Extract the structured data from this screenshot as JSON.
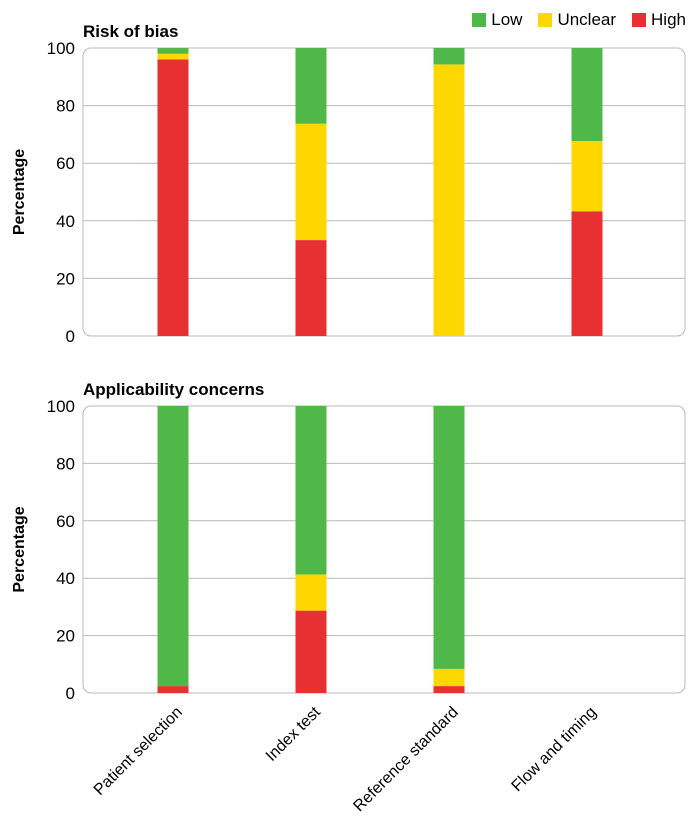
{
  "legend": {
    "placement": "top-right",
    "items": [
      {
        "label": "Low",
        "color": "#4fb848"
      },
      {
        "label": "Unclear",
        "color": "#ffd700"
      },
      {
        "label": "High",
        "color": "#e63031"
      }
    ]
  },
  "chart_data": [
    {
      "type": "bar",
      "stacked": true,
      "title": "Risk of bias",
      "ylabel": "Percentage",
      "xlabel": "",
      "ylim": [
        0,
        100
      ],
      "yticks": [
        0,
        20,
        40,
        60,
        80,
        100
      ],
      "grid": true,
      "categories": [
        "Patient selection",
        "Index test",
        "Reference standard",
        "Flow and timing"
      ],
      "series": [
        {
          "name": "High",
          "color": "#e63031",
          "values": [
            96,
            33.3,
            0,
            43.3
          ]
        },
        {
          "name": "Unclear",
          "color": "#ffd700",
          "values": [
            2,
            40.4,
            94.3,
            24.4
          ]
        },
        {
          "name": "Low",
          "color": "#4fb848",
          "values": [
            2,
            26.3,
            5.7,
            32.3
          ]
        }
      ]
    },
    {
      "type": "bar",
      "stacked": true,
      "title": "Applicability concerns",
      "ylabel": "Percentage",
      "xlabel": "",
      "ylim": [
        0,
        100
      ],
      "yticks": [
        0,
        20,
        40,
        60,
        80,
        100
      ],
      "grid": true,
      "categories": [
        "Patient selection",
        "Index test",
        "Reference standard",
        "Flow and timing"
      ],
      "series": [
        {
          "name": "High",
          "color": "#e63031",
          "values": [
            2.4,
            28.7,
            2.4,
            0
          ]
        },
        {
          "name": "Unclear",
          "color": "#ffd700",
          "values": [
            0,
            12.6,
            6.0,
            0
          ]
        },
        {
          "name": "Low",
          "color": "#4fb848",
          "values": [
            97.6,
            58.7,
            91.6,
            0
          ]
        }
      ]
    }
  ]
}
